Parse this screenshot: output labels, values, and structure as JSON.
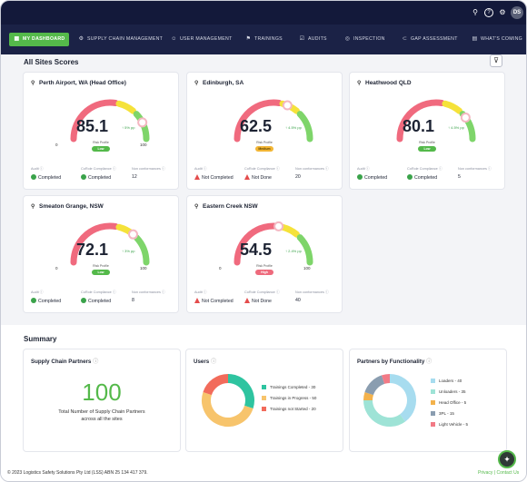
{
  "nav": {
    "items": [
      {
        "label": "MY DASHBOARD",
        "icon": "dashboard-icon",
        "glyph": "▦"
      },
      {
        "label": "SUPPLY CHAIN MANAGEMENT",
        "icon": "truck-icon",
        "glyph": "⚙"
      },
      {
        "label": "USER MANAGEMENT",
        "icon": "users-icon",
        "glyph": "☺"
      },
      {
        "label": "TRAININGS",
        "icon": "training-icon",
        "glyph": "⚑"
      },
      {
        "label": "AUDITS",
        "icon": "audit-icon",
        "glyph": "☑"
      },
      {
        "label": "INSPECTION",
        "icon": "inspection-icon",
        "glyph": "◎"
      },
      {
        "label": "GAP ASSESSMENT",
        "icon": "gap-icon",
        "glyph": "⊂"
      },
      {
        "label": "WHAT'S COMING",
        "icon": "calendar-icon",
        "glyph": "▤"
      }
    ]
  },
  "header": {
    "search_glyph": "⚲",
    "help_glyph": "?",
    "settings_glyph": "⚙",
    "avatar_initials": "DS"
  },
  "scores": {
    "title": "All Sites Scores",
    "filter_glyph": "⊽",
    "cards": [
      {
        "site": "Perth Airport, WA (Head Office)",
        "score": "85.1",
        "delta": "↑ 5% pp",
        "risk_label": "Risk Profile",
        "badge": "Low",
        "badge_color": "#54b94a",
        "min": "0",
        "max": "100",
        "needle": 0.85,
        "audit_label": "Audit",
        "audit": "Completed",
        "audit_ok": true,
        "coc_label": "CoRole Compliance",
        "coc": "Completed",
        "coc_ok": true,
        "nc_label": "Non conformances",
        "nc": "12"
      },
      {
        "site": "Edinburgh, SA",
        "score": "62.5",
        "delta": "↑ 4.5% pp",
        "risk_label": "Risk Profile",
        "badge": "Medium",
        "badge_color": "#f2b534",
        "min": "",
        "max": "",
        "needle": 0.625,
        "audit_label": "Audit",
        "audit": "Not Completed",
        "audit_ok": false,
        "coc_label": "CoRole Compliance",
        "coc": "Not Done",
        "coc_ok": false,
        "nc_label": "Non conformances",
        "nc": "20"
      },
      {
        "site": "Heathwood QLD",
        "score": "80.1",
        "delta": "↑ 4.5% pp",
        "risk_label": "Risk Profile",
        "badge": "Low",
        "badge_color": "#54b94a",
        "min": "",
        "max": "",
        "needle": 0.8,
        "audit_label": "Audit",
        "audit": "Completed",
        "audit_ok": true,
        "coc_label": "CoRole Compliance",
        "coc": "Completed",
        "coc_ok": true,
        "nc_label": "Non conformances",
        "nc": "5"
      },
      {
        "site": "Smeaton Grange, NSW",
        "score": "72.1",
        "delta": "↑ 3% pp",
        "risk_label": "Risk Profile",
        "badge": "Low",
        "badge_color": "#54b94a",
        "min": "0",
        "max": "100",
        "needle": 0.72,
        "audit_label": "Audit",
        "audit": "Completed",
        "audit_ok": true,
        "coc_label": "CoRole Compliance",
        "coc": "Completed",
        "coc_ok": true,
        "nc_label": "Non conformances",
        "nc": "8"
      },
      {
        "site": "Eastern Creek NSW",
        "score": "54.5",
        "delta": "↑ 2.4% pp",
        "risk_label": "Risk Profile",
        "badge": "High",
        "badge_color": "#ee6a7c",
        "min": "0",
        "max": "100",
        "needle": 0.545,
        "audit_label": "Audit",
        "audit": "Not Completed",
        "audit_ok": false,
        "coc_label": "CoRole Compliance",
        "coc": "Not Done",
        "coc_ok": false,
        "nc_label": "Non conformances",
        "nc": "40"
      }
    ]
  },
  "summary": {
    "title": "Summary",
    "partners": {
      "title": "Supply Chain Partners",
      "count": "100",
      "caption": "Total Number of Supply Chain Partners across all the sites"
    },
    "users": {
      "title": "Users",
      "legend": [
        {
          "label": "Trainings Completed - 30",
          "value": 30,
          "color": "#2ec4a0"
        },
        {
          "label": "Trainings in Progress - 50",
          "value": 50,
          "color": "#f7c46c"
        },
        {
          "label": "Trainings not Started - 20",
          "value": 20,
          "color": "#f26b5b"
        }
      ]
    },
    "functionality": {
      "title": "Partners by Functionality",
      "legend": [
        {
          "label": "Loaders - 40",
          "value": 40,
          "color": "#a7dcef"
        },
        {
          "label": "Unloaders - 35",
          "value": 35,
          "color": "#9ee3d6"
        },
        {
          "label": "Head Office - 5",
          "value": 5,
          "color": "#f3b24c"
        },
        {
          "label": "3PL - 15",
          "value": 15,
          "color": "#8a9db0"
        },
        {
          "label": "Light Vehicle - 5",
          "value": 5,
          "color": "#f27a86"
        }
      ]
    }
  },
  "footer": {
    "copyright": "© 2023 Logistics Safety Solutions Pty Ltd (LSS) ABN 25 134 417 379.",
    "privacy": "Privacy | Contact Us",
    "fab_glyph": "✦"
  },
  "colors": {
    "gauge_red": "#f06a7e",
    "gauge_yellow": "#f5e23a",
    "gauge_green": "#7ed56a"
  }
}
